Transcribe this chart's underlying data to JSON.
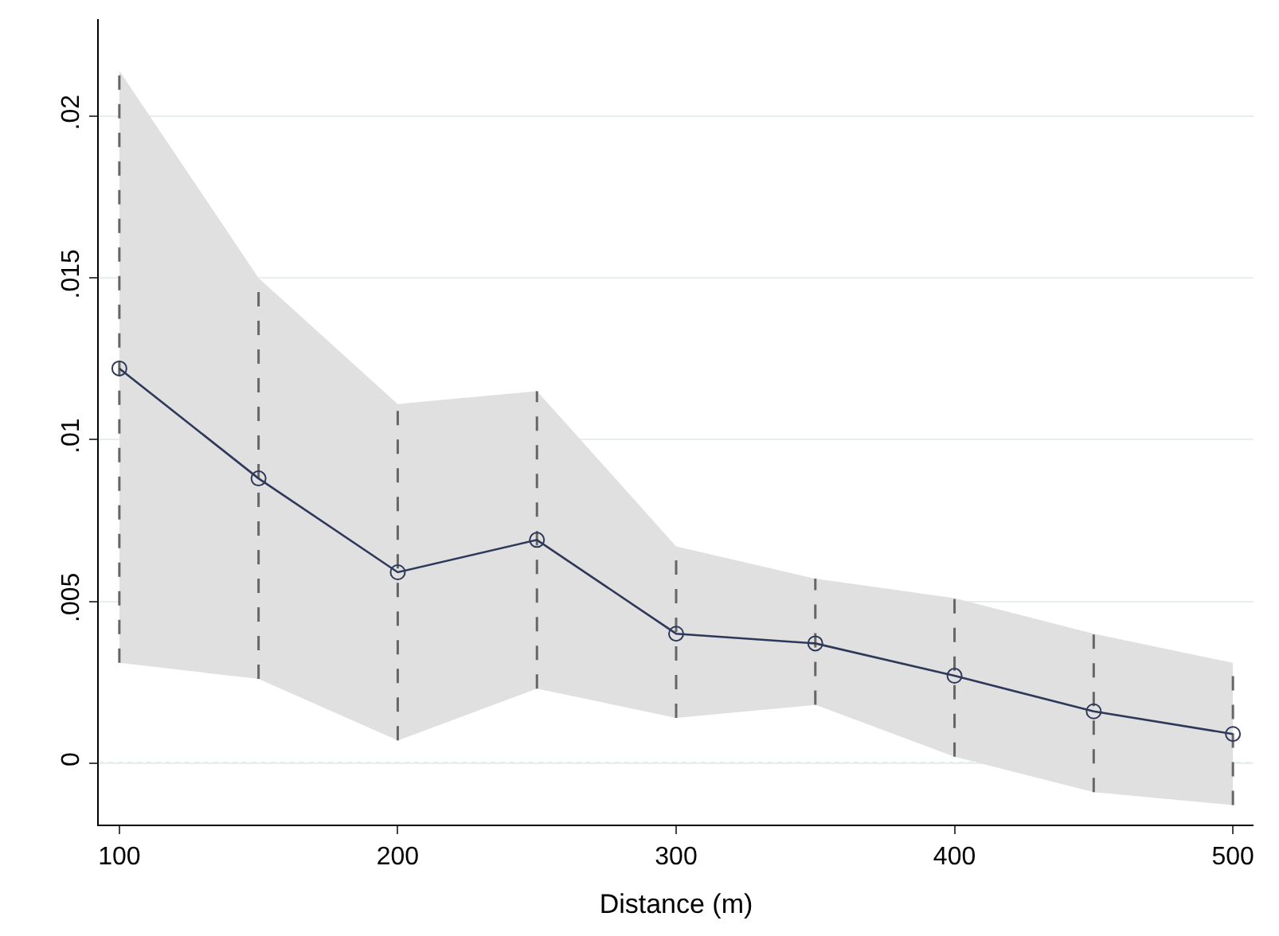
{
  "chart_data": {
    "type": "line",
    "xlabel": "Distance (m)",
    "x": [
      100,
      150,
      200,
      250,
      300,
      350,
      400,
      450,
      500
    ],
    "series": [
      {
        "color": "#2e3858",
        "values": [
          0.0122,
          0.0088,
          0.0059,
          0.0069,
          0.004,
          0.0037,
          0.0027,
          0.0016,
          0.0009
        ],
        "lower": [
          0.0031,
          0.0026,
          0.0007,
          0.0023,
          0.0014,
          0.0018,
          0.0002,
          -0.0009,
          -0.0013
        ],
        "upper": [
          0.0214,
          0.015,
          0.0111,
          0.0115,
          0.0067,
          0.0057,
          0.0051,
          0.004,
          0.0031
        ],
        "errors": [
          [
            0.0031,
            0.0214
          ],
          [
            0.0026,
            0.015
          ],
          [
            0.0007,
            0.0111
          ],
          [
            0.0023,
            0.0115
          ],
          [
            0.0014,
            0.0067
          ],
          [
            0.0018,
            0.0057
          ],
          [
            0.0002,
            0.0051
          ],
          [
            -0.0009,
            0.004
          ],
          [
            -0.0013,
            0.0031
          ]
        ]
      }
    ],
    "xlim": [
      92.6,
      507.4
    ],
    "ylim": [
      -0.0019,
      0.023
    ],
    "xticks": [
      100,
      200,
      300,
      400,
      500
    ],
    "yticks": [
      {
        "value": 0,
        "label": "0"
      },
      {
        "value": 0.005,
        "label": ".005"
      },
      {
        "value": 0.01,
        "label": ".01"
      },
      {
        "value": 0.015,
        "label": ".015"
      },
      {
        "value": 0.02,
        "label": ".02"
      }
    ],
    "ref_lines": [
      {
        "axis": "y",
        "value": 0,
        "color": "#aaaaaa",
        "line_style": "dotted"
      }
    ],
    "grid": "y",
    "marker": "circle",
    "line_style": "solid",
    "legend": false
  }
}
